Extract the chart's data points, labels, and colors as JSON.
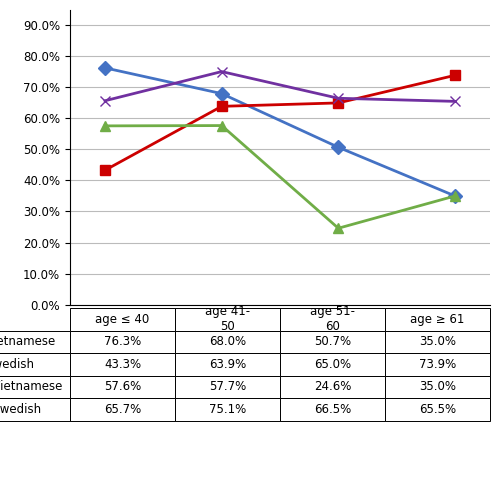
{
  "x_values": [
    0,
    1,
    2,
    3
  ],
  "series": [
    {
      "name": "ER Vietnamese",
      "values": [
        76.3,
        68.0,
        50.7,
        35.0
      ],
      "color": "#4472C4",
      "marker": "D",
      "linestyle": "-"
    },
    {
      "name": "ER Swedish",
      "values": [
        43.3,
        63.9,
        65.0,
        73.9
      ],
      "color": "#CC0000",
      "marker": "s",
      "linestyle": "-"
    },
    {
      "name": "PgR Vietnamese",
      "values": [
        57.6,
        57.7,
        24.6,
        35.0
      ],
      "color": "#70AD47",
      "marker": "^",
      "linestyle": "-"
    },
    {
      "name": "PgR Swedish",
      "values": [
        65.7,
        75.1,
        66.5,
        65.5
      ],
      "color": "#7030A0",
      "marker": "x",
      "linestyle": "-"
    }
  ],
  "ylim_min": 0,
  "ylim_max": 95,
  "yticks": [
    0,
    10,
    20,
    30,
    40,
    50,
    60,
    70,
    80,
    90
  ],
  "ytick_labels": [
    "0.0%",
    "10.0%",
    "20.0%",
    "30.0%",
    "40.0%",
    "50.0%",
    "60.0%",
    "70.0%",
    "80.0%",
    "90.0%"
  ],
  "table_row_labels": [
    "ER Vietnamese",
    "ER Swedish",
    "PgR Vietnamese",
    "PgR Swedish"
  ],
  "table_col_labels": [
    "age ≤ 40",
    "age 41-\n50",
    "age 51-\n60",
    "age ≥ 61"
  ],
  "table_data": [
    [
      "76.3%",
      "68.0%",
      "50.7%",
      "35.0%"
    ],
    [
      "43.3%",
      "63.9%",
      "65.0%",
      "73.9%"
    ],
    [
      "57.6%",
      "57.7%",
      "24.6%",
      "35.0%"
    ],
    [
      "65.7%",
      "75.1%",
      "66.5%",
      "65.5%"
    ]
  ],
  "background_color": "#FFFFFF",
  "grid_color": "#BBBBBB",
  "font_size": 8.5,
  "marker_size": 7,
  "line_width": 2.0
}
